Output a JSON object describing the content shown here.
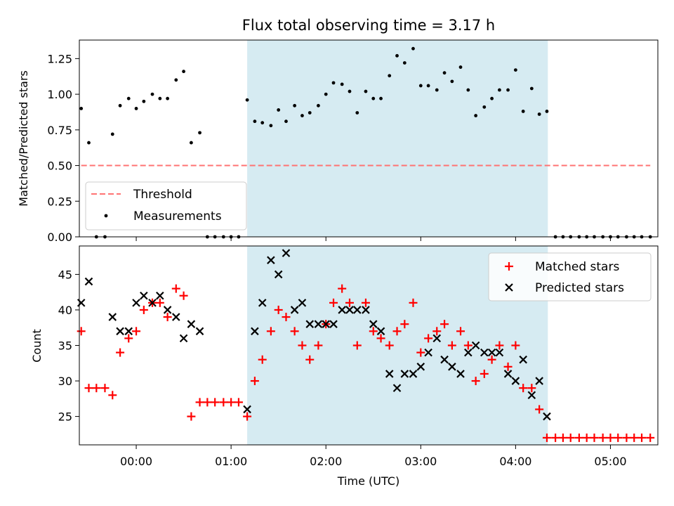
{
  "chart_data": [
    {
      "type": "scatter",
      "title": "Flux total observing time = 3.17 h",
      "xlabel": "",
      "ylabel": "Matched/Predicted stars",
      "xlim": [
        -0.6,
        5.5
      ],
      "ylim": [
        0,
        1.38
      ],
      "xticks": [
        0,
        1,
        2,
        3,
        4,
        5
      ],
      "yticks": [
        0.0,
        0.25,
        0.5,
        0.75,
        1.0,
        1.25
      ],
      "ytick_labels": [
        "0.00",
        "0.25",
        "0.50",
        "0.75",
        "1.00",
        "1.25"
      ],
      "shaded_span": [
        1.17,
        4.34
      ],
      "legend_position": "lower-left",
      "series": [
        {
          "name": "Threshold",
          "kind": "dashed-line",
          "color": "#ff7373",
          "x": [
            -0.58,
            5.42
          ],
          "y": [
            0.5,
            0.5
          ]
        },
        {
          "name": "Measurements",
          "kind": "dots",
          "color": "#000000",
          "points": [
            [
              -0.58,
              0.9
            ],
            [
              -0.5,
              0.66
            ],
            [
              -0.42,
              0.0
            ],
            [
              -0.33,
              0.0
            ],
            [
              -0.25,
              0.72
            ],
            [
              -0.17,
              0.92
            ],
            [
              -0.08,
              0.97
            ],
            [
              0.0,
              0.9
            ],
            [
              0.08,
              0.95
            ],
            [
              0.17,
              1.0
            ],
            [
              0.25,
              0.97
            ],
            [
              0.33,
              0.97
            ],
            [
              0.42,
              1.1
            ],
            [
              0.5,
              1.16
            ],
            [
              0.58,
              0.66
            ],
            [
              0.67,
              0.73
            ],
            [
              0.75,
              0.0
            ],
            [
              0.83,
              0.0
            ],
            [
              0.92,
              0.0
            ],
            [
              1.0,
              0.0
            ],
            [
              1.08,
              0.0
            ],
            [
              1.17,
              0.96
            ],
            [
              1.25,
              0.81
            ],
            [
              1.33,
              0.8
            ],
            [
              1.42,
              0.78
            ],
            [
              1.5,
              0.89
            ],
            [
              1.58,
              0.81
            ],
            [
              1.67,
              0.92
            ],
            [
              1.75,
              0.85
            ],
            [
              1.83,
              0.87
            ],
            [
              1.92,
              0.92
            ],
            [
              2.0,
              1.0
            ],
            [
              2.08,
              1.08
            ],
            [
              2.17,
              1.07
            ],
            [
              2.25,
              1.02
            ],
            [
              2.33,
              0.87
            ],
            [
              2.42,
              1.02
            ],
            [
              2.5,
              0.97
            ],
            [
              2.58,
              0.97
            ],
            [
              2.67,
              1.13
            ],
            [
              2.75,
              1.27
            ],
            [
              2.83,
              1.22
            ],
            [
              2.92,
              1.32
            ],
            [
              3.0,
              1.06
            ],
            [
              3.08,
              1.06
            ],
            [
              3.17,
              1.03
            ],
            [
              3.25,
              1.15
            ],
            [
              3.33,
              1.09
            ],
            [
              3.42,
              1.19
            ],
            [
              3.5,
              1.03
            ],
            [
              3.58,
              0.85
            ],
            [
              3.67,
              0.91
            ],
            [
              3.75,
              0.97
            ],
            [
              3.83,
              1.03
            ],
            [
              3.92,
              1.03
            ],
            [
              4.0,
              1.17
            ],
            [
              4.08,
              0.88
            ],
            [
              4.17,
              1.04
            ],
            [
              4.25,
              0.86
            ],
            [
              4.33,
              0.88
            ],
            [
              4.42,
              0.0
            ],
            [
              4.5,
              0.0
            ],
            [
              4.58,
              0.0
            ],
            [
              4.67,
              0.0
            ],
            [
              4.75,
              0.0
            ],
            [
              4.83,
              0.0
            ],
            [
              4.92,
              0.0
            ],
            [
              5.0,
              0.0
            ],
            [
              5.08,
              0.0
            ],
            [
              5.17,
              0.0
            ],
            [
              5.25,
              0.0
            ],
            [
              5.33,
              0.0
            ],
            [
              5.42,
              0.0
            ]
          ]
        }
      ]
    },
    {
      "type": "scatter",
      "title": "",
      "xlabel": "Time (UTC)",
      "ylabel": "Count",
      "xlim": [
        -0.6,
        5.5
      ],
      "ylim": [
        21,
        49
      ],
      "xticks": [
        0,
        1,
        2,
        3,
        4,
        5
      ],
      "xtick_labels": [
        "00:00",
        "01:00",
        "02:00",
        "03:00",
        "04:00",
        "05:00"
      ],
      "yticks": [
        25,
        30,
        35,
        40,
        45
      ],
      "ytick_labels": [
        "25",
        "30",
        "35",
        "40",
        "45"
      ],
      "shaded_span": [
        1.17,
        4.34
      ],
      "legend_position": "top-right",
      "series": [
        {
          "name": "Matched stars",
          "kind": "plus",
          "color": "#ff0000",
          "points": [
            [
              -0.58,
              37
            ],
            [
              -0.5,
              29
            ],
            [
              -0.42,
              29
            ],
            [
              -0.33,
              29
            ],
            [
              -0.25,
              28
            ],
            [
              -0.17,
              34
            ],
            [
              -0.08,
              36
            ],
            [
              0.0,
              37
            ],
            [
              0.08,
              40
            ],
            [
              0.17,
              41
            ],
            [
              0.25,
              41
            ],
            [
              0.33,
              39
            ],
            [
              0.42,
              43
            ],
            [
              0.5,
              42
            ],
            [
              0.58,
              25
            ],
            [
              0.67,
              27
            ],
            [
              0.75,
              27
            ],
            [
              0.83,
              27
            ],
            [
              0.92,
              27
            ],
            [
              1.0,
              27
            ],
            [
              1.08,
              27
            ],
            [
              1.17,
              25
            ],
            [
              1.25,
              30
            ],
            [
              1.33,
              33
            ],
            [
              1.42,
              37
            ],
            [
              1.5,
              40
            ],
            [
              1.58,
              39
            ],
            [
              1.67,
              37
            ],
            [
              1.75,
              35
            ],
            [
              1.83,
              33
            ],
            [
              1.92,
              35
            ],
            [
              2.0,
              38
            ],
            [
              2.08,
              41
            ],
            [
              2.17,
              43
            ],
            [
              2.25,
              41
            ],
            [
              2.33,
              35
            ],
            [
              2.42,
              41
            ],
            [
              2.5,
              37
            ],
            [
              2.58,
              36
            ],
            [
              2.67,
              35
            ],
            [
              2.75,
              37
            ],
            [
              2.83,
              38
            ],
            [
              2.92,
              41
            ],
            [
              3.0,
              34
            ],
            [
              3.08,
              36
            ],
            [
              3.17,
              37
            ],
            [
              3.25,
              38
            ],
            [
              3.33,
              35
            ],
            [
              3.42,
              37
            ],
            [
              3.5,
              35
            ],
            [
              3.58,
              30
            ],
            [
              3.67,
              31
            ],
            [
              3.75,
              33
            ],
            [
              3.83,
              35
            ],
            [
              3.92,
              32
            ],
            [
              4.0,
              35
            ],
            [
              4.08,
              29
            ],
            [
              4.17,
              29
            ],
            [
              4.25,
              26
            ],
            [
              4.33,
              22
            ],
            [
              4.42,
              22
            ],
            [
              4.5,
              22
            ],
            [
              4.58,
              22
            ],
            [
              4.67,
              22
            ],
            [
              4.75,
              22
            ],
            [
              4.83,
              22
            ],
            [
              4.92,
              22
            ],
            [
              5.0,
              22
            ],
            [
              5.08,
              22
            ],
            [
              5.17,
              22
            ],
            [
              5.25,
              22
            ],
            [
              5.33,
              22
            ],
            [
              5.42,
              22
            ]
          ]
        },
        {
          "name": "Predicted stars",
          "kind": "cross",
          "color": "#000000",
          "points": [
            [
              -0.58,
              41
            ],
            [
              -0.5,
              44
            ],
            [
              -0.25,
              39
            ],
            [
              -0.17,
              37
            ],
            [
              -0.08,
              37
            ],
            [
              0.0,
              41
            ],
            [
              0.08,
              42
            ],
            [
              0.17,
              41
            ],
            [
              0.25,
              42
            ],
            [
              0.33,
              40
            ],
            [
              0.42,
              39
            ],
            [
              0.5,
              36
            ],
            [
              0.58,
              38
            ],
            [
              0.67,
              37
            ],
            [
              1.17,
              26
            ],
            [
              1.25,
              37
            ],
            [
              1.33,
              41
            ],
            [
              1.42,
              47
            ],
            [
              1.5,
              45
            ],
            [
              1.58,
              48
            ],
            [
              1.67,
              40
            ],
            [
              1.75,
              41
            ],
            [
              1.83,
              38
            ],
            [
              1.92,
              38
            ],
            [
              2.0,
              38
            ],
            [
              2.08,
              38
            ],
            [
              2.17,
              40
            ],
            [
              2.25,
              40
            ],
            [
              2.33,
              40
            ],
            [
              2.42,
              40
            ],
            [
              2.5,
              38
            ],
            [
              2.58,
              37
            ],
            [
              2.67,
              31
            ],
            [
              2.75,
              29
            ],
            [
              2.83,
              31
            ],
            [
              2.92,
              31
            ],
            [
              3.0,
              32
            ],
            [
              3.08,
              34
            ],
            [
              3.17,
              36
            ],
            [
              3.25,
              33
            ],
            [
              3.33,
              32
            ],
            [
              3.42,
              31
            ],
            [
              3.5,
              34
            ],
            [
              3.58,
              35
            ],
            [
              3.67,
              34
            ],
            [
              3.75,
              34
            ],
            [
              3.83,
              34
            ],
            [
              3.92,
              31
            ],
            [
              4.0,
              30
            ],
            [
              4.08,
              33
            ],
            [
              4.17,
              28
            ],
            [
              4.25,
              30
            ],
            [
              4.33,
              25
            ]
          ]
        }
      ]
    }
  ]
}
